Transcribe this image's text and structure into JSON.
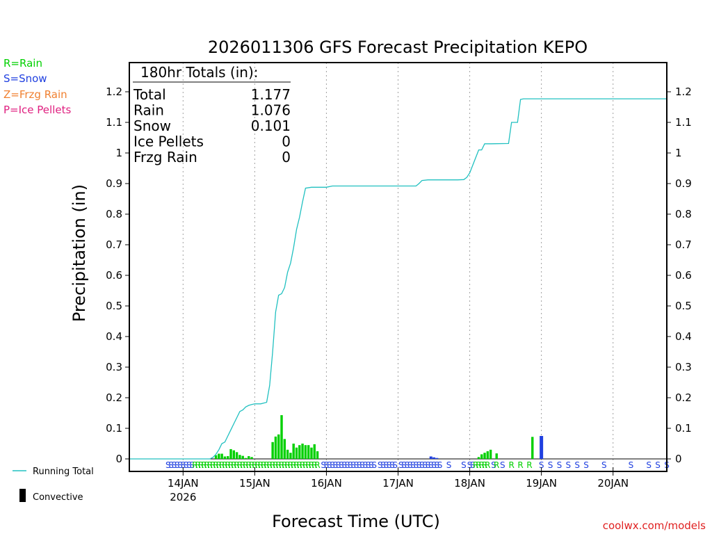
{
  "colors": {
    "background": "#ffffff",
    "axis": "#000000",
    "grid": "#a0a0a0",
    "running_total": "#20c0c0",
    "rain": "#00d000",
    "snow": "#2040e0",
    "frzg_rain": "#f08030",
    "ice_pellets": "#e02080",
    "credit": "#e02020"
  },
  "legend": {
    "rain": "R=Rain",
    "snow": "S=Snow",
    "frzg_rain": "Z=Frzg Rain",
    "ice_pellets": "P=Ice Pellets",
    "running_total": "Running Total",
    "convective": "Convective"
  },
  "totals_box": {
    "title": "180hr Totals (in):",
    "rows": [
      {
        "label": "Total",
        "value": "1.177"
      },
      {
        "label": "Rain",
        "value": "1.076"
      },
      {
        "label": "Snow",
        "value": "0.101"
      },
      {
        "label": "Ice Pellets",
        "value": "0"
      },
      {
        "label": "Frzg Rain",
        "value": "0"
      }
    ]
  },
  "credit": "coolwx.com/models",
  "chart_data": {
    "type": "bar",
    "title": "2026011306 GFS Forecast Precipitation KEPO",
    "xlabel": "Forecast Time (UTC)",
    "ylabel": "Precipitation (in)",
    "x_units": "hours since 13JAN 06Z",
    "xlim": [
      0,
      180
    ],
    "ylim": [
      0,
      1.3
    ],
    "yticks": [
      "0",
      "0.1",
      "0.2",
      "0.3",
      "0.4",
      "0.5",
      "0.6",
      "0.7",
      "0.8",
      "0.9",
      "1",
      "1.1",
      "1.2"
    ],
    "xticks": [
      {
        "hour": 18,
        "label": "14JAN",
        "sublabel": "2026"
      },
      {
        "hour": 42,
        "label": "15JAN",
        "sublabel": ""
      },
      {
        "hour": 66,
        "label": "16JAN",
        "sublabel": ""
      },
      {
        "hour": 90,
        "label": "17JAN",
        "sublabel": ""
      },
      {
        "hour": 114,
        "label": "18JAN",
        "sublabel": ""
      },
      {
        "hour": 138,
        "label": "19JAN",
        "sublabel": ""
      },
      {
        "hour": 162,
        "label": "20JAN",
        "sublabel": ""
      }
    ],
    "series": [
      {
        "name": "Running Total",
        "type": "line",
        "points": [
          [
            0,
            0
          ],
          [
            27,
            0
          ],
          [
            28,
            0.005
          ],
          [
            29,
            0.015
          ],
          [
            30,
            0.03
          ],
          [
            31,
            0.05
          ],
          [
            32,
            0.055
          ],
          [
            33,
            0.075
          ],
          [
            34,
            0.095
          ],
          [
            35,
            0.115
          ],
          [
            36,
            0.135
          ],
          [
            37,
            0.155
          ],
          [
            38,
            0.16
          ],
          [
            39,
            0.17
          ],
          [
            40,
            0.175
          ],
          [
            41,
            0.178
          ],
          [
            42,
            0.18
          ],
          [
            44,
            0.18
          ],
          [
            46,
            0.185
          ],
          [
            47,
            0.24
          ],
          [
            48,
            0.35
          ],
          [
            49,
            0.48
          ],
          [
            50,
            0.535
          ],
          [
            51,
            0.54
          ],
          [
            52,
            0.56
          ],
          [
            53,
            0.61
          ],
          [
            54,
            0.64
          ],
          [
            55,
            0.69
          ],
          [
            56,
            0.75
          ],
          [
            57,
            0.79
          ],
          [
            58,
            0.84
          ],
          [
            59,
            0.885
          ],
          [
            61,
            0.888
          ],
          [
            66,
            0.888
          ],
          [
            68,
            0.892
          ],
          [
            80,
            0.892
          ],
          [
            96,
            0.892
          ],
          [
            97,
            0.9
          ],
          [
            98,
            0.91
          ],
          [
            100,
            0.912
          ],
          [
            110,
            0.912
          ],
          [
            112,
            0.913
          ],
          [
            113,
            0.92
          ],
          [
            114,
            0.935
          ],
          [
            115,
            0.96
          ],
          [
            116,
            0.985
          ],
          [
            117,
            1.01
          ],
          [
            118,
            1.01
          ],
          [
            119,
            1.03
          ],
          [
            121,
            1.03
          ],
          [
            127,
            1.031
          ],
          [
            128,
            1.1
          ],
          [
            130,
            1.1
          ],
          [
            131,
            1.175
          ],
          [
            132,
            1.177
          ],
          [
            180,
            1.177
          ]
        ]
      },
      {
        "name": "Rain",
        "type": "bar",
        "points": [
          [
            29,
            0.012
          ],
          [
            30,
            0.017
          ],
          [
            31,
            0.017
          ],
          [
            32,
            0.008
          ],
          [
            33,
            0.009
          ],
          [
            34,
            0.032
          ],
          [
            35,
            0.028
          ],
          [
            36,
            0.022
          ],
          [
            37,
            0.013
          ],
          [
            38,
            0.01
          ],
          [
            39,
            0.003
          ],
          [
            40,
            0.009
          ],
          [
            41,
            0.006
          ],
          [
            48,
            0.055
          ],
          [
            49,
            0.073
          ],
          [
            50,
            0.08
          ],
          [
            51,
            0.143
          ],
          [
            52,
            0.065
          ],
          [
            53,
            0.03
          ],
          [
            54,
            0.02
          ],
          [
            55,
            0.05
          ],
          [
            56,
            0.037
          ],
          [
            57,
            0.045
          ],
          [
            58,
            0.05
          ],
          [
            59,
            0.045
          ],
          [
            60,
            0.045
          ],
          [
            61,
            0.037
          ],
          [
            62,
            0.048
          ],
          [
            63,
            0.025
          ],
          [
            117,
            0.006
          ],
          [
            118,
            0.015
          ],
          [
            119,
            0.02
          ],
          [
            120,
            0.025
          ],
          [
            121,
            0.03
          ],
          [
            123,
            0.018
          ],
          [
            135,
            0.072
          ]
        ]
      },
      {
        "name": "Snow",
        "type": "bar",
        "points": [
          [
            101,
            0.008
          ],
          [
            102,
            0.005
          ],
          [
            103,
            0.003
          ],
          [
            138,
            0.075
          ]
        ]
      }
    ],
    "precip_type_row": [
      {
        "hour": 13,
        "code": "S"
      },
      {
        "hour": 14,
        "code": "S"
      },
      {
        "hour": 15,
        "code": "S"
      },
      {
        "hour": 16,
        "code": "S"
      },
      {
        "hour": 17,
        "code": "S"
      },
      {
        "hour": 18,
        "code": "S"
      },
      {
        "hour": 19,
        "code": "S"
      },
      {
        "hour": 20,
        "code": "S"
      },
      {
        "hour": 21,
        "code": "S"
      },
      {
        "hour": 22,
        "code": "R"
      },
      {
        "hour": 23,
        "code": "R"
      },
      {
        "hour": 24,
        "code": "R"
      },
      {
        "hour": 25,
        "code": "R"
      },
      {
        "hour": 26,
        "code": "R"
      },
      {
        "hour": 27,
        "code": "R"
      },
      {
        "hour": 28,
        "code": "R"
      },
      {
        "hour": 29,
        "code": "R"
      },
      {
        "hour": 30,
        "code": "R"
      },
      {
        "hour": 31,
        "code": "R"
      },
      {
        "hour": 32,
        "code": "R"
      },
      {
        "hour": 33,
        "code": "R"
      },
      {
        "hour": 34,
        "code": "R"
      },
      {
        "hour": 35,
        "code": "R"
      },
      {
        "hour": 36,
        "code": "R"
      },
      {
        "hour": 37,
        "code": "R"
      },
      {
        "hour": 38,
        "code": "R"
      },
      {
        "hour": 39,
        "code": "R"
      },
      {
        "hour": 40,
        "code": "R"
      },
      {
        "hour": 41,
        "code": "R"
      },
      {
        "hour": 42,
        "code": "R"
      },
      {
        "hour": 43,
        "code": "R"
      },
      {
        "hour": 44,
        "code": "R"
      },
      {
        "hour": 45,
        "code": "R"
      },
      {
        "hour": 46,
        "code": "R"
      },
      {
        "hour": 47,
        "code": "R"
      },
      {
        "hour": 48,
        "code": "R"
      },
      {
        "hour": 49,
        "code": "R"
      },
      {
        "hour": 50,
        "code": "R"
      },
      {
        "hour": 51,
        "code": "R"
      },
      {
        "hour": 52,
        "code": "R"
      },
      {
        "hour": 53,
        "code": "R"
      },
      {
        "hour": 54,
        "code": "R"
      },
      {
        "hour": 55,
        "code": "R"
      },
      {
        "hour": 56,
        "code": "R"
      },
      {
        "hour": 57,
        "code": "R"
      },
      {
        "hour": 58,
        "code": "R"
      },
      {
        "hour": 59,
        "code": "R"
      },
      {
        "hour": 60,
        "code": "R"
      },
      {
        "hour": 61,
        "code": "R"
      },
      {
        "hour": 62,
        "code": "R"
      },
      {
        "hour": 63,
        "code": "R"
      },
      {
        "hour": 65,
        "code": "S"
      },
      {
        "hour": 66,
        "code": "S"
      },
      {
        "hour": 67,
        "code": "S"
      },
      {
        "hour": 68,
        "code": "S"
      },
      {
        "hour": 69,
        "code": "S"
      },
      {
        "hour": 70,
        "code": "S"
      },
      {
        "hour": 71,
        "code": "S"
      },
      {
        "hour": 72,
        "code": "S"
      },
      {
        "hour": 73,
        "code": "S"
      },
      {
        "hour": 74,
        "code": "S"
      },
      {
        "hour": 75,
        "code": "S"
      },
      {
        "hour": 76,
        "code": "S"
      },
      {
        "hour": 77,
        "code": "S"
      },
      {
        "hour": 78,
        "code": "S"
      },
      {
        "hour": 79,
        "code": "S"
      },
      {
        "hour": 80,
        "code": "S"
      },
      {
        "hour": 81,
        "code": "S"
      },
      {
        "hour": 82,
        "code": "S"
      },
      {
        "hour": 84,
        "code": "S"
      },
      {
        "hour": 85,
        "code": "S"
      },
      {
        "hour": 86,
        "code": "S"
      },
      {
        "hour": 87,
        "code": "S"
      },
      {
        "hour": 88,
        "code": "S"
      },
      {
        "hour": 89,
        "code": "S"
      },
      {
        "hour": 91,
        "code": "S"
      },
      {
        "hour": 92,
        "code": "S"
      },
      {
        "hour": 93,
        "code": "S"
      },
      {
        "hour": 94,
        "code": "S"
      },
      {
        "hour": 95,
        "code": "S"
      },
      {
        "hour": 96,
        "code": "S"
      },
      {
        "hour": 97,
        "code": "S"
      },
      {
        "hour": 98,
        "code": "S"
      },
      {
        "hour": 99,
        "code": "S"
      },
      {
        "hour": 100,
        "code": "S"
      },
      {
        "hour": 101,
        "code": "S"
      },
      {
        "hour": 102,
        "code": "S"
      },
      {
        "hour": 103,
        "code": "S"
      },
      {
        "hour": 104,
        "code": "S"
      },
      {
        "hour": 107,
        "code": "S"
      },
      {
        "hour": 112,
        "code": "S"
      },
      {
        "hour": 114,
        "code": "S"
      },
      {
        "hour": 115,
        "code": "S"
      },
      {
        "hour": 116,
        "code": "R"
      },
      {
        "hour": 117,
        "code": "R"
      },
      {
        "hour": 118,
        "code": "R"
      },
      {
        "hour": 119,
        "code": "R"
      },
      {
        "hour": 120,
        "code": "R"
      },
      {
        "hour": 122,
        "code": "S"
      },
      {
        "hour": 123,
        "code": "R"
      },
      {
        "hour": 125,
        "code": "S"
      },
      {
        "hour": 128,
        "code": "R"
      },
      {
        "hour": 131,
        "code": "R"
      },
      {
        "hour": 134,
        "code": "R"
      },
      {
        "hour": 138,
        "code": "S"
      },
      {
        "hour": 141,
        "code": "S"
      },
      {
        "hour": 144,
        "code": "S"
      },
      {
        "hour": 147,
        "code": "S"
      },
      {
        "hour": 150,
        "code": "S"
      },
      {
        "hour": 153,
        "code": "S"
      },
      {
        "hour": 159,
        "code": "S"
      },
      {
        "hour": 168,
        "code": "S"
      },
      {
        "hour": 174,
        "code": "S"
      },
      {
        "hour": 177,
        "code": "S"
      },
      {
        "hour": 180,
        "code": "S"
      }
    ]
  }
}
